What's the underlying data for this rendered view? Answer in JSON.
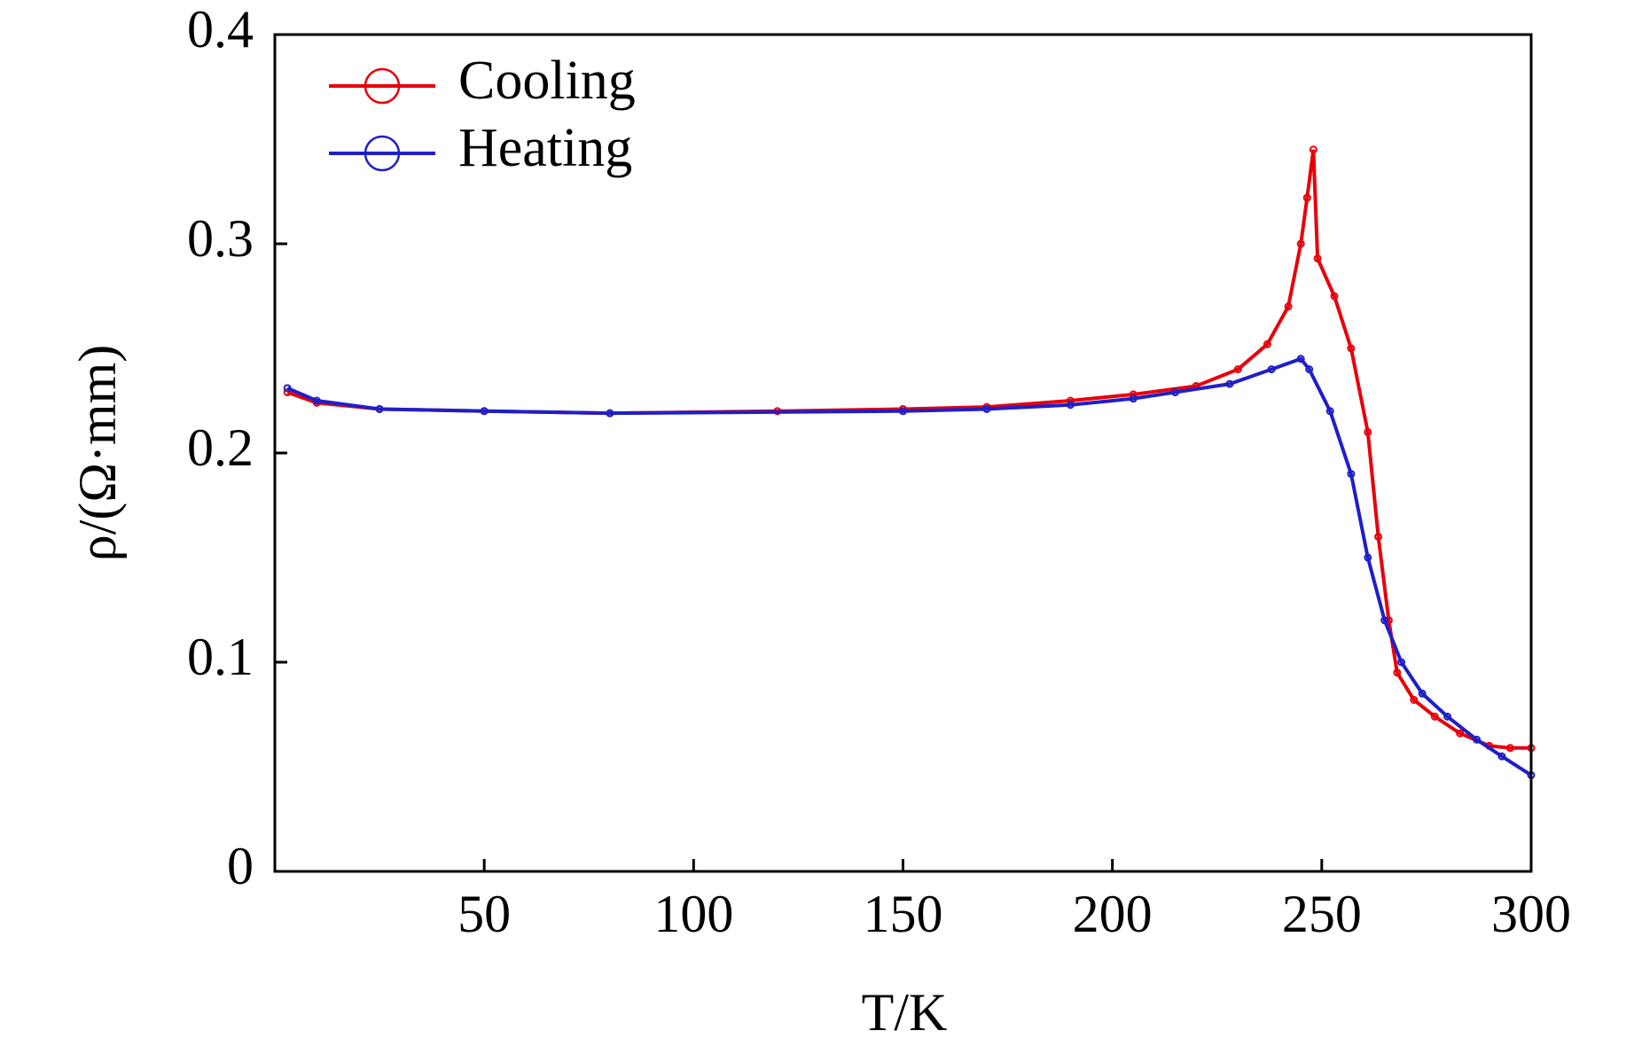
{
  "chart_data": {
    "type": "line",
    "xlabel": "T/K",
    "ylabel": "ρ/(Ω·mm)",
    "xlim": [
      0,
      300
    ],
    "ylim": [
      0,
      0.4
    ],
    "xticks": [
      50,
      100,
      150,
      200,
      250,
      300
    ],
    "yticks": [
      0,
      0.1,
      0.2,
      0.3,
      0.4
    ],
    "legend": "upper left",
    "series": [
      {
        "name": "Cooling",
        "color": "#e8000b",
        "x": [
          3,
          10,
          25,
          50,
          80,
          120,
          150,
          170,
          190,
          205,
          220,
          230,
          237,
          242,
          245,
          246.5,
          248,
          249,
          253,
          257,
          261,
          263.5,
          266,
          268,
          272,
          277,
          283,
          290,
          295,
          300
        ],
        "values": [
          0.229,
          0.224,
          0.221,
          0.22,
          0.219,
          0.22,
          0.221,
          0.222,
          0.225,
          0.228,
          0.232,
          0.24,
          0.252,
          0.27,
          0.3,
          0.322,
          0.345,
          0.293,
          0.275,
          0.25,
          0.21,
          0.16,
          0.12,
          0.095,
          0.082,
          0.074,
          0.066,
          0.06,
          0.059,
          0.059
        ]
      },
      {
        "name": "Heating",
        "color": "#1f1fc8",
        "x": [
          3,
          10,
          25,
          50,
          80,
          150,
          170,
          190,
          205,
          215,
          228,
          238,
          245,
          247,
          252,
          257,
          261,
          265,
          269,
          274,
          280,
          287,
          293,
          300
        ],
        "values": [
          0.231,
          0.225,
          0.221,
          0.22,
          0.219,
          0.22,
          0.221,
          0.223,
          0.226,
          0.229,
          0.233,
          0.24,
          0.245,
          0.24,
          0.22,
          0.19,
          0.15,
          0.12,
          0.1,
          0.085,
          0.074,
          0.063,
          0.055,
          0.046
        ]
      }
    ]
  }
}
